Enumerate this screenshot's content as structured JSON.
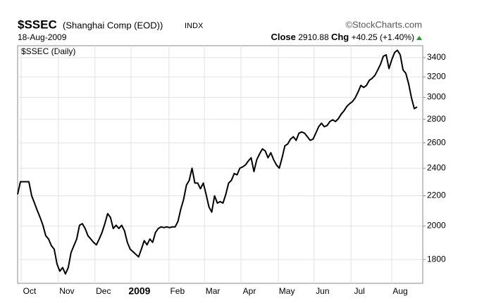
{
  "chart_data": {
    "type": "line",
    "title": "$SSEC",
    "subtitle": "(Shanghai Comp (EOD))",
    "exchange": "INDX",
    "source": "©StockCharts.com",
    "date": "18-Aug-2009",
    "close_label": "Close",
    "close": 2910.88,
    "change_label": "Chg",
    "change": "+40.25 (+1.40%)",
    "series_label": "$SSEC (Daily)",
    "log_scale": true,
    "grid": true,
    "color": "#000000",
    "xlim": [
      0,
      142
    ],
    "xticks": [
      {
        "value": 4.26,
        "label": "Oct"
      },
      {
        "value": 17.5,
        "label": "Nov"
      },
      {
        "value": 30.5,
        "label": "Dec"
      },
      {
        "value": 43.3,
        "label": "2009"
      },
      {
        "value": 56.8,
        "label": "Feb"
      },
      {
        "value": 69.4,
        "label": "Mar"
      },
      {
        "value": 82.4,
        "label": "Apr"
      },
      {
        "value": 95.7,
        "label": "May"
      },
      {
        "value": 108.4,
        "label": "Jun"
      },
      {
        "value": 121.5,
        "label": "Jul"
      },
      {
        "value": 136,
        "label": "Aug"
      }
    ],
    "ylim": [
      1670,
      3530
    ],
    "yticks": [
      1800,
      2000,
      2200,
      2400,
      2600,
      2800,
      3000,
      3200,
      3400
    ],
    "values": [
      2210,
      2300,
      2300,
      2300,
      2300,
      2200,
      2150,
      2100,
      2055,
      2005,
      1940,
      1920,
      1880,
      1860,
      1775,
      1735,
      1755,
      1720,
      1755,
      1840,
      1880,
      1920,
      2005,
      2015,
      1985,
      1940,
      1920,
      1900,
      1885,
      1920,
      1960,
      2015,
      2080,
      2055,
      1985,
      2005,
      1985,
      2005,
      1970,
      1900,
      1860,
      1845,
      1830,
      1815,
      1860,
      1910,
      1885,
      1920,
      1900,
      1960,
      1985,
      1995,
      1990,
      1995,
      1990,
      1995,
      1995,
      2030,
      2110,
      2175,
      2275,
      2310,
      2400,
      2290,
      2290,
      2250,
      2290,
      2210,
      2125,
      2090,
      2200,
      2150,
      2160,
      2150,
      2210,
      2290,
      2310,
      2360,
      2350,
      2400,
      2410,
      2425,
      2455,
      2480,
      2375,
      2465,
      2510,
      2550,
      2535,
      2480,
      2520,
      2465,
      2425,
      2400,
      2480,
      2575,
      2590,
      2630,
      2650,
      2620,
      2680,
      2690,
      2680,
      2650,
      2620,
      2630,
      2680,
      2735,
      2765,
      2735,
      2745,
      2780,
      2795,
      2780,
      2805,
      2845,
      2875,
      2915,
      2940,
      2960,
      2995,
      3050,
      3115,
      3095,
      3115,
      3165,
      3185,
      3215,
      3270,
      3330,
      3415,
      3430,
      3285,
      3378,
      3455,
      3480,
      3430,
      3270,
      3235,
      3130,
      2995,
      2895,
      2910.88
    ]
  }
}
